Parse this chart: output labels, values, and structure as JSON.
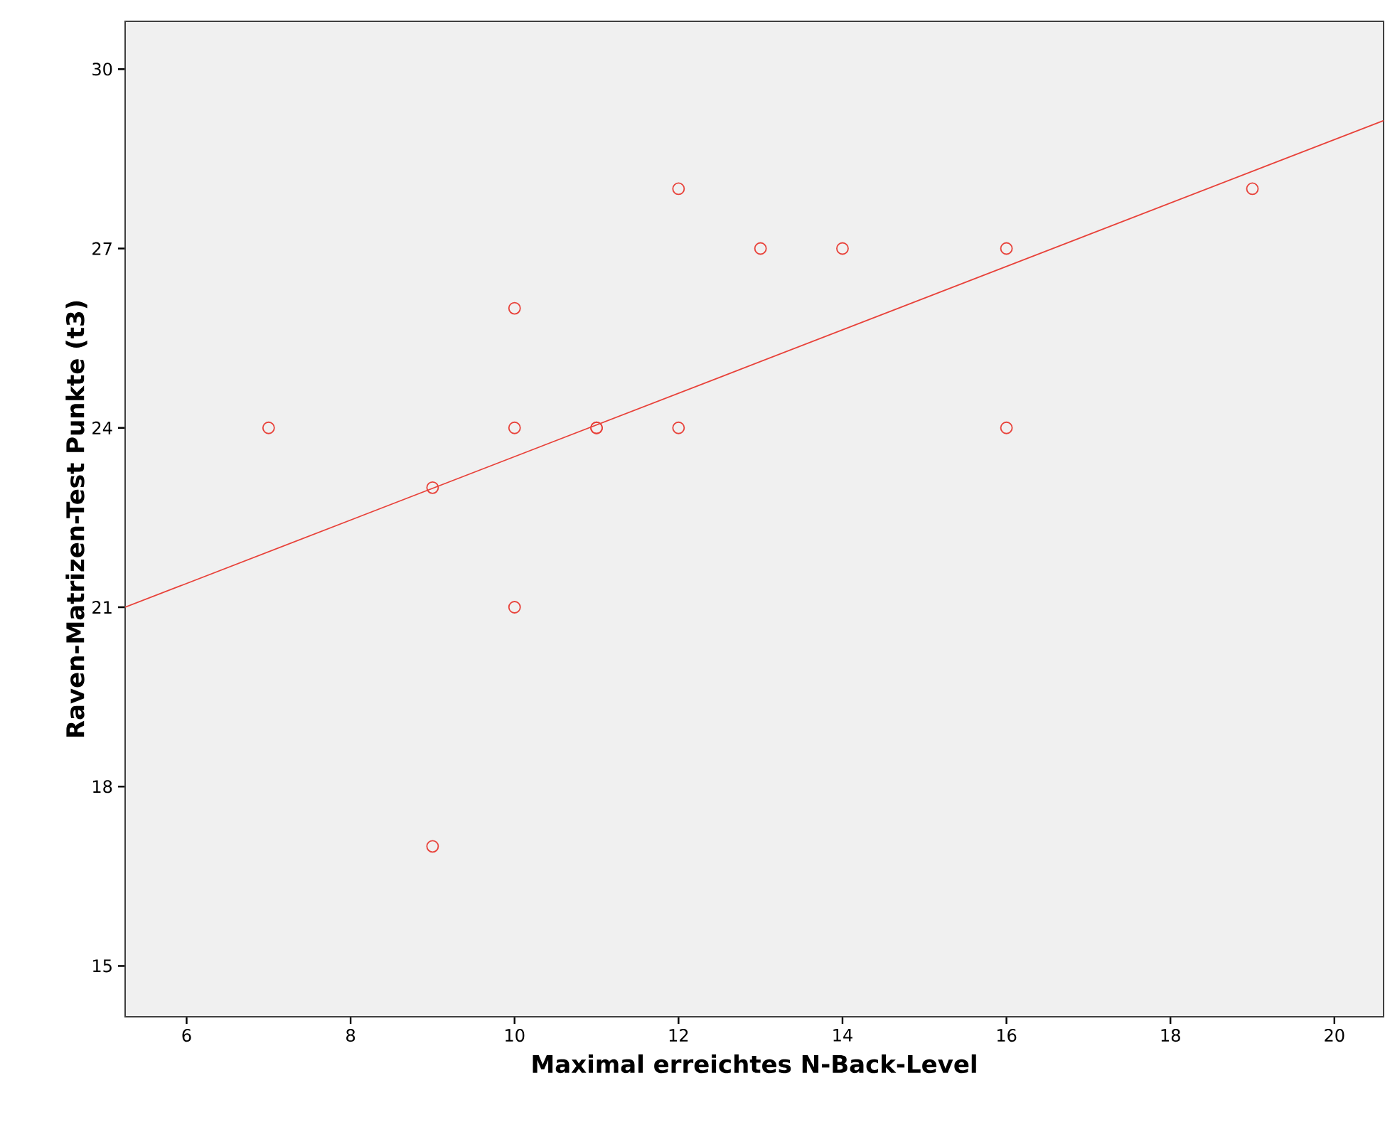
{
  "chart_data": {
    "type": "scatter",
    "xlabel": "Maximal erreichtes N-Back-Level",
    "ylabel": "Raven-Matrizen-Test Punkte (t3)",
    "xlim": [
      5.25,
      20.6
    ],
    "ylim": [
      14.15,
      30.8
    ],
    "xticks": [
      6,
      8,
      10,
      12,
      14,
      16,
      18,
      20
    ],
    "yticks": [
      15,
      18,
      21,
      24,
      27,
      30
    ],
    "grid": false,
    "marker": "circle",
    "series": [
      {
        "color": "#e8423a",
        "x": [
          7,
          9,
          9,
          10,
          10,
          10,
          11,
          11,
          12,
          12,
          13,
          14,
          16,
          16,
          19
        ],
        "values": [
          24,
          23,
          17,
          26,
          24,
          21,
          24,
          24,
          28,
          24,
          27,
          27,
          27,
          24,
          28
        ]
      },
      {
        "type": "line",
        "color": "#e8423a",
        "marker": "none",
        "x": [
          5.25,
          20.6
        ],
        "values": [
          21.0,
          29.14
        ]
      }
    ]
  }
}
